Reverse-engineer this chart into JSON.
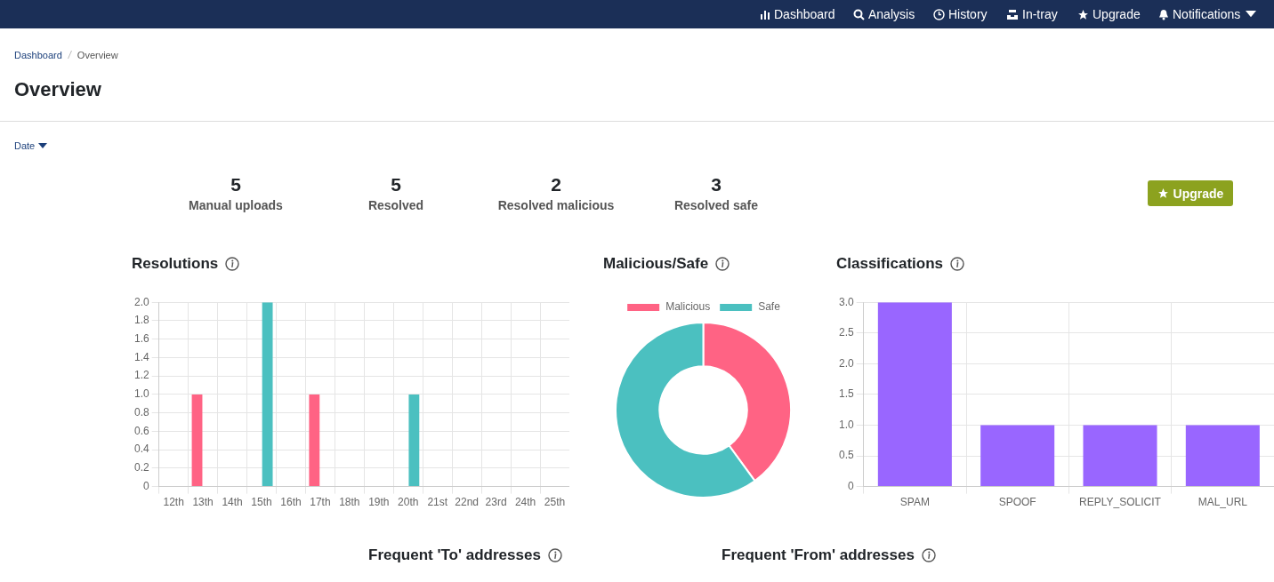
{
  "chart_data": [
    {
      "type": "other",
      "title": "Overview",
      "annotations": [
        "Dashboard",
        "Analysis",
        "History",
        "In-tray",
        "Upgrade",
        "Notifications",
        "Dashboard",
        "Overview",
        "Date",
        "5",
        "Manual uploads",
        "5",
        "Resolved",
        "2",
        "Resolved malicious",
        "3",
        "Resolved safe",
        "Upgrade",
        "Frequent 'To' addresses",
        "Frequent 'From' addresses"
      ]
    },
    {
      "type": "bar",
      "title": "Resolutions",
      "categories": [
        "12th",
        "13th",
        "14th",
        "15th",
        "16th",
        "17th",
        "18th",
        "19th",
        "20th",
        "21st",
        "22nd",
        "23rd",
        "24th",
        "25th"
      ],
      "series": [
        {
          "color": "#ff6384",
          "values": [
            0,
            1,
            0,
            0,
            0,
            1,
            0,
            0,
            0,
            0,
            0,
            0,
            0,
            0
          ]
        },
        {
          "color": "#4bc0c0",
          "values": [
            0,
            0,
            0,
            2,
            0,
            0,
            0,
            0,
            1,
            0,
            0,
            0,
            0,
            0
          ]
        }
      ],
      "ylim": [
        0,
        2
      ],
      "yticks": [
        0,
        0.2,
        0.4,
        0.6,
        0.8,
        {
          "value": 1,
          "label": "1.0"
        },
        1.2,
        1.4,
        1.6,
        1.8,
        {
          "value": 2,
          "label": "2.0"
        }
      ],
      "grid": true
    },
    {
      "type": "donut",
      "title": "Malicious/Safe",
      "categories": [
        "Malicious",
        "Safe"
      ],
      "values": [
        40,
        60
      ],
      "colors": [
        "#ff6384",
        "#4bc0c0"
      ],
      "legend": "top"
    },
    {
      "type": "bar",
      "title": "Classifications",
      "categories": [
        "SPAM",
        "SPOOF",
        "REPLY_SOLICIT",
        "MAL_URL"
      ],
      "values": [
        3,
        1,
        1,
        1
      ],
      "color": "#9966ff",
      "ylim": [
        0,
        3
      ],
      "yticks": [
        0,
        0.5,
        {
          "value": 1,
          "label": "1.0"
        },
        1.5,
        {
          "value": 2,
          "label": "2.0"
        },
        2.5,
        {
          "value": 3,
          "label": "3.0"
        }
      ],
      "grid": true
    }
  ]
}
